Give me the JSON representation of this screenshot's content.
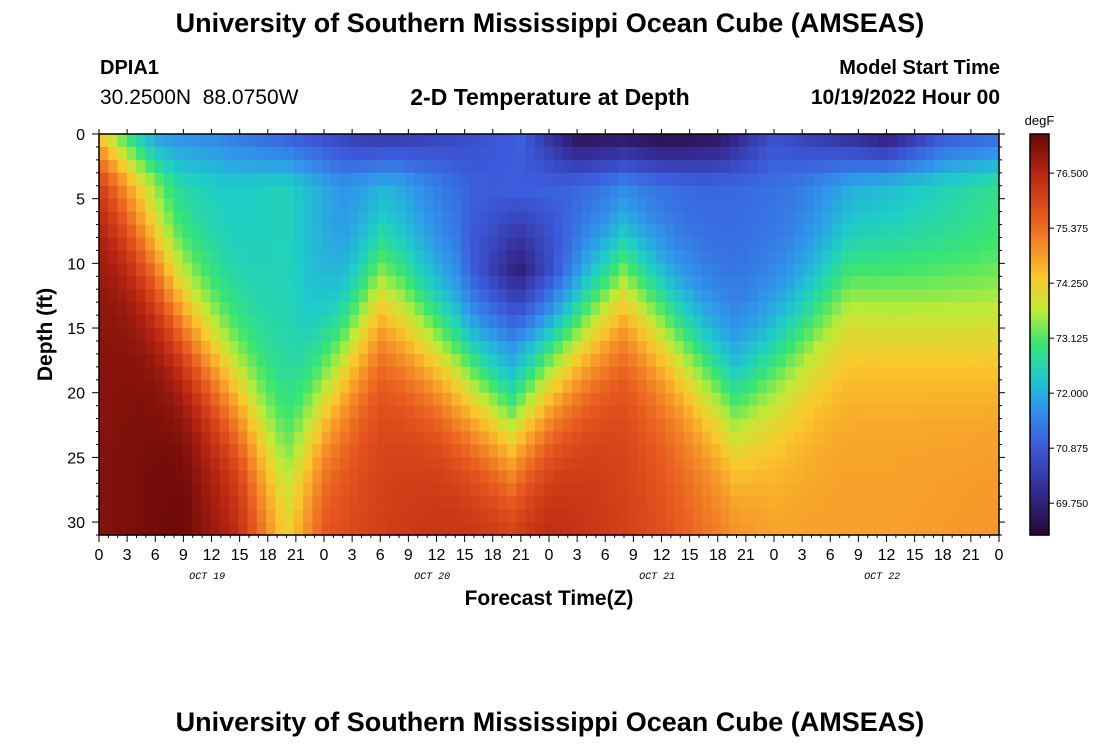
{
  "header": {
    "title": "University of Southern Mississippi Ocean Cube (AMSEAS)",
    "station_id": "DPIA1",
    "coordinates": "30.2500N  88.0750W",
    "subtitle": "2-D Temperature at Depth",
    "model_start_label": "Model Start Time",
    "model_start_value": "10/19/2022 Hour 00"
  },
  "footer": {
    "repeat_title": "University of Southern Mississippi Ocean Cube (AMSEAS)"
  },
  "chart_data": {
    "type": "heatmap",
    "title": "2-D Temperature at Depth",
    "xlabel": "Forecast Time(Z)",
    "ylabel": "Depth (ft)",
    "x_range_hours": [
      0,
      96
    ],
    "y_range_ft": [
      0,
      31
    ],
    "x_tick_labels": [
      "0",
      "3",
      "6",
      "9",
      "12",
      "15",
      "18",
      "21",
      "0",
      "3",
      "6",
      "9",
      "12",
      "15",
      "18",
      "21",
      "0",
      "3",
      "6",
      "9",
      "12",
      "15",
      "18",
      "21",
      "0",
      "3",
      "6",
      "9",
      "12",
      "15",
      "18",
      "21",
      "0"
    ],
    "y_ticks": [
      0,
      5,
      10,
      15,
      20,
      25,
      30
    ],
    "day_labels": [
      {
        "label": "OCT 19",
        "hour": 11
      },
      {
        "label": "OCT 20",
        "hour": 35
      },
      {
        "label": "OCT 21",
        "hour": 59
      },
      {
        "label": "OCT 22",
        "hour": 83
      }
    ],
    "colorbar": {
      "unit": "degF",
      "min": 69.1,
      "max": 77.3,
      "ticks": [
        "76.500",
        "75.375",
        "74.250",
        "73.125",
        "72.000",
        "70.875",
        "69.750"
      ]
    },
    "surface_temp_by_hour": [
      {
        "hour": 0,
        "temp": 72.6
      },
      {
        "hour": 6,
        "temp": 71.5
      },
      {
        "hour": 12,
        "temp": 71.5
      },
      {
        "hour": 24,
        "temp": 70.6
      },
      {
        "hour": 30,
        "temp": 70.0
      },
      {
        "hour": 36,
        "temp": 70.4
      },
      {
        "hour": 45,
        "temp": 71.0
      },
      {
        "hour": 51,
        "temp": 69.3
      },
      {
        "hour": 60,
        "temp": 69.1
      },
      {
        "hour": 66,
        "temp": 69.4
      },
      {
        "hour": 72,
        "temp": 70.7
      },
      {
        "hour": 84,
        "temp": 69.4
      },
      {
        "hour": 90,
        "temp": 70.7
      },
      {
        "hour": 96,
        "temp": 71.0
      }
    ],
    "bottom_temp_by_hour": [
      {
        "hour": 0,
        "temp": 77.0
      },
      {
        "hour": 9,
        "temp": 77.3
      },
      {
        "hour": 15,
        "temp": 76.5
      },
      {
        "hour": 20,
        "temp": 74.5
      },
      {
        "hour": 24,
        "temp": 75.8
      },
      {
        "hour": 36,
        "temp": 76.3
      },
      {
        "hour": 48,
        "temp": 76.5
      },
      {
        "hour": 60,
        "temp": 75.8
      },
      {
        "hour": 72,
        "temp": 74.8
      },
      {
        "hour": 84,
        "temp": 74.8
      },
      {
        "hour": 96,
        "temp": 74.9
      }
    ],
    "thermocline_depth_by_hour": [
      {
        "hour": 0,
        "depth_ft": 1.5
      },
      {
        "hour": 9,
        "depth_ft": 14
      },
      {
        "hour": 20,
        "depth_ft": 25.5
      },
      {
        "hour": 30,
        "depth_ft": 12
      },
      {
        "hour": 44,
        "depth_ft": 22.5
      },
      {
        "hour": 56,
        "depth_ft": 11
      },
      {
        "hour": 68,
        "depth_ft": 21
      },
      {
        "hour": 80,
        "depth_ft": 11.5
      },
      {
        "hour": 96,
        "depth_ft": 14
      }
    ],
    "thermocline_thickness_ft": 3.5,
    "mid_layer_temp_by_hour": [
      {
        "hour": 0,
        "temp": 74.0
      },
      {
        "hour": 8,
        "temp": 72.4
      },
      {
        "hour": 14,
        "temp": 72.3
      },
      {
        "hour": 20,
        "temp": 72.5
      },
      {
        "hour": 26,
        "temp": 71.6
      },
      {
        "hour": 32,
        "temp": 71.7
      },
      {
        "hour": 40,
        "temp": 70.9
      },
      {
        "hour": 50,
        "temp": 70.9
      },
      {
        "hour": 58,
        "temp": 71.0
      },
      {
        "hour": 64,
        "temp": 71.0
      },
      {
        "hour": 74,
        "temp": 71.2
      },
      {
        "hour": 82,
        "temp": 71.8
      },
      {
        "hour": 96,
        "temp": 72.7
      }
    ],
    "cold_core": {
      "hour_start": 38,
      "hour_end": 52,
      "depth_ft": 10.5,
      "temp": 69.5
    }
  }
}
